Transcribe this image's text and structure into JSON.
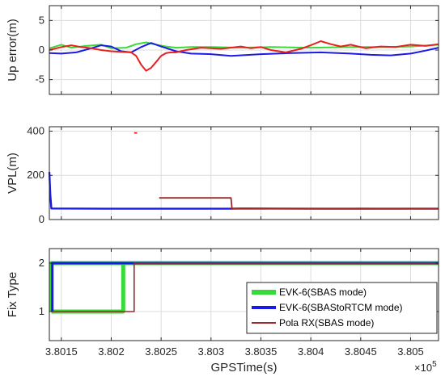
{
  "chart_data": [
    {
      "type": "line",
      "ylabel": "Up error(m)",
      "ylim": [
        -7.5,
        7.5
      ],
      "xlim": [
        380138,
        380528
      ],
      "yticks": [
        -5,
        0,
        5
      ],
      "ytick_labels": [
        "-5",
        "0",
        "5"
      ],
      "grid": true,
      "series": [
        {
          "color": "#3ad93a",
          "style": "line",
          "x": [
            380138,
            380150,
            380160,
            380175,
            380190,
            380200,
            380215,
            380225,
            380235,
            380245,
            380255,
            380265,
            380280,
            380300,
            380330,
            380360,
            380400,
            380440,
            380470,
            380500,
            380528
          ],
          "y": [
            0.3,
            0.9,
            0.4,
            0.7,
            0.9,
            0.3,
            0.4,
            1.0,
            1.3,
            0.9,
            0.6,
            0.4,
            0.5,
            0.5,
            0.4,
            0.5,
            0.4,
            0.5,
            0.5,
            0.6,
            0.9
          ]
        },
        {
          "color": "#1a1ae6",
          "style": "line",
          "x": [
            380138,
            380150,
            380165,
            380180,
            380190,
            380200,
            380210,
            380220,
            380230,
            380240,
            380250,
            380265,
            380280,
            380300,
            380320,
            380350,
            380380,
            380410,
            380440,
            380460,
            380480,
            380500,
            380515,
            380528
          ],
          "y": [
            -0.5,
            -0.6,
            -0.4,
            0.3,
            0.8,
            0.6,
            -0.2,
            -0.4,
            0.5,
            1.2,
            0.6,
            -0.2,
            -0.6,
            -0.7,
            -1.0,
            -0.7,
            -0.5,
            -0.4,
            -0.6,
            -0.8,
            -0.9,
            -0.6,
            -0.1,
            0.4
          ]
        },
        {
          "color": "#e82020",
          "style": "line",
          "x": [
            380138,
            380150,
            380160,
            380170,
            380180,
            380190,
            380200,
            380210,
            380220,
            380225,
            380230,
            380235,
            380240,
            380245,
            380250,
            380255,
            380260,
            380265,
            380275,
            380290,
            380310,
            380330,
            380340,
            380350,
            380360,
            380375,
            380390,
            380400,
            380410,
            380420,
            380430,
            380440,
            380455,
            380470,
            380485,
            380500,
            380515,
            380528
          ],
          "y": [
            0.0,
            0.5,
            0.8,
            0.5,
            0.3,
            0.0,
            -0.2,
            -0.3,
            -0.4,
            -1.0,
            -2.5,
            -3.5,
            -3.0,
            -2.0,
            -1.0,
            -0.5,
            -0.4,
            -0.4,
            0.0,
            0.4,
            0.2,
            0.6,
            0.3,
            0.5,
            0.0,
            -0.4,
            0.2,
            0.8,
            1.5,
            1.0,
            0.6,
            0.9,
            0.3,
            0.6,
            0.5,
            0.9,
            0.7,
            1.0
          ]
        }
      ]
    },
    {
      "type": "line",
      "ylabel": "VPL(m)",
      "ylim": [
        0,
        420
      ],
      "xlim": [
        380138,
        380528
      ],
      "yticks": [
        0,
        200,
        400
      ],
      "ytick_labels": [
        "0",
        "200",
        "400"
      ],
      "grid": true,
      "series": [
        {
          "color": "#1a1ae6",
          "style": "line",
          "x": [
            380138,
            380139,
            380140,
            380200,
            380250,
            380300,
            380320,
            380330,
            380400,
            380450,
            380500,
            380528
          ],
          "y": [
            215,
            110,
            50,
            49,
            49,
            49,
            49,
            50,
            49,
            49,
            49,
            49
          ]
        },
        {
          "color": "#e82020",
          "style": "line",
          "x": [
            380223,
            380226
          ],
          "y": [
            392,
            392
          ]
        },
        {
          "color": "#a0282a",
          "style": "line",
          "x": [
            380248,
            380280,
            380320,
            380321,
            380350,
            380400,
            380450,
            380500,
            380528
          ],
          "y": [
            98,
            98,
            98,
            50,
            50,
            49,
            50,
            49,
            49
          ]
        }
      ]
    },
    {
      "type": "line",
      "xlabel": "GPSTime(s)",
      "ylabel": "Fix Type",
      "ylim": [
        0.4,
        2.3
      ],
      "xlim": [
        380138,
        380528
      ],
      "yticks": [
        1,
        2
      ],
      "ytick_labels": [
        "1",
        "2"
      ],
      "xticks": [
        380150,
        380200,
        380250,
        380300,
        380350,
        380400,
        380450,
        380500
      ],
      "xtick_labels": [
        "3.8015",
        "3.802",
        "3.8025",
        "3.803",
        "3.8035",
        "3.804",
        "3.8045",
        "3.805"
      ],
      "x_exponent_base": "×10",
      "x_exponent": "5",
      "grid": true,
      "legend": {
        "position": "bottom-right",
        "entries": [
          "EVK-6(SBAS mode)",
          "EVK-6(SBAStoRTCM mode)",
          "Pola RX(SBAS mode)"
        ]
      },
      "series": [
        {
          "name": "EVK-6(SBAS mode)",
          "color": "#3ad93a",
          "x": [
            380140,
            380140,
            380209,
            380209,
            380528
          ],
          "y": [
            1,
            2,
            2,
            2,
            2
          ]
        },
        {
          "name": "EVK-6(SBAS mode)",
          "color": "#3ad93a",
          "x": [
            380140,
            380212,
            380212,
            380528
          ],
          "y": [
            1,
            1,
            2,
            2
          ]
        },
        {
          "name": "EVK-6(SBAStoRTCM mode)",
          "color": "#1a1ae6",
          "x": [
            380141,
            380141,
            380207,
            380207,
            380528
          ],
          "y": [
            1,
            2,
            2,
            2,
            2
          ]
        },
        {
          "name": "Pola RX(SBAS mode)",
          "color": "#a0282a",
          "x": [
            380140,
            380223,
            380223,
            380528
          ],
          "y": [
            1,
            1,
            2,
            2
          ]
        }
      ]
    }
  ]
}
